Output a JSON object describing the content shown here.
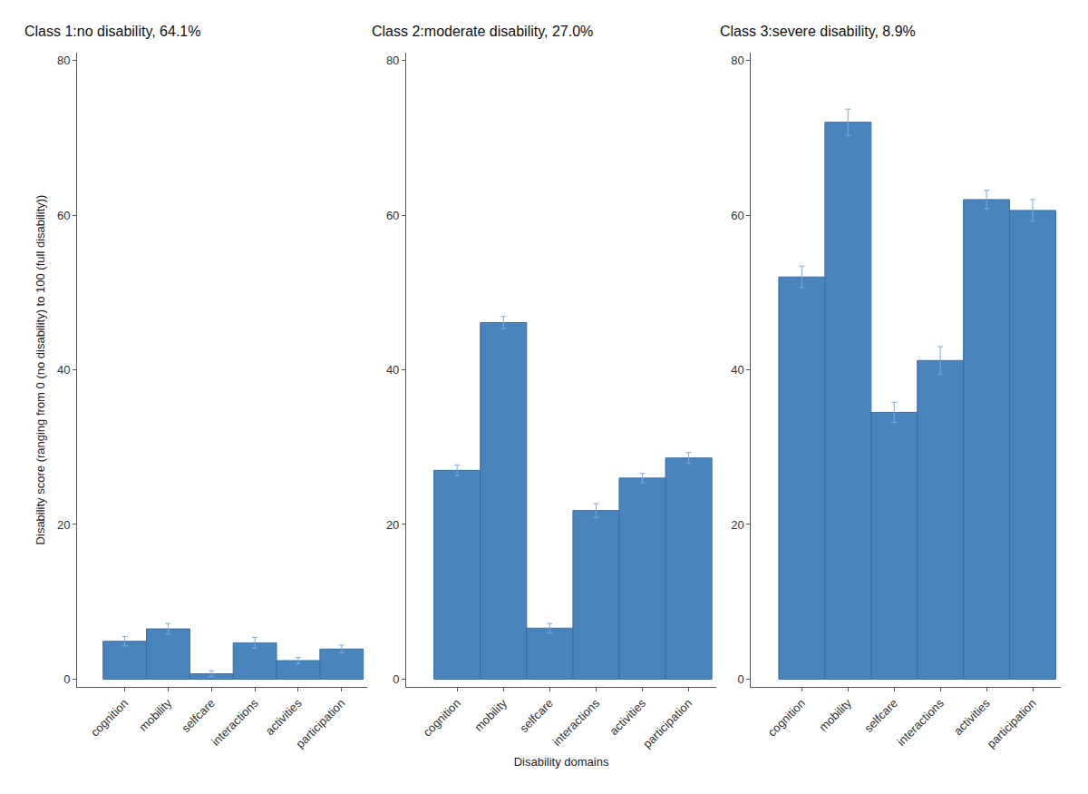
{
  "chart_data": [
    {
      "type": "bar",
      "title": "Class 1:no disability, 64.1%",
      "categories": [
        "cognition",
        "mobility",
        "selfcare",
        "interactions",
        "activities",
        "participation"
      ],
      "values": [
        4.9,
        6.5,
        0.7,
        4.7,
        2.4,
        3.9
      ],
      "errors": [
        0.6,
        0.7,
        0.4,
        0.7,
        0.4,
        0.5
      ],
      "color": "#4a84bd",
      "ylim": [
        -1,
        81
      ],
      "yticks": [
        0,
        20,
        40,
        60,
        80
      ],
      "grid": false,
      "ylabel": "Disability score (ranging from 0 (no disability) to 100 (full disability))"
    },
    {
      "type": "bar",
      "title": "Class 2:moderate disability, 27.0%",
      "categories": [
        "cognition",
        "mobility",
        "selfcare",
        "interactions",
        "activities",
        "participation"
      ],
      "values": [
        27.0,
        46.1,
        6.6,
        21.8,
        26.0,
        28.6
      ],
      "errors": [
        0.7,
        0.8,
        0.6,
        0.9,
        0.6,
        0.7
      ],
      "color": "#4a84bd",
      "ylim": [
        -1,
        81
      ],
      "yticks": [
        0,
        20,
        40,
        60,
        80
      ],
      "grid": false,
      "xlabel": "Disability domains"
    },
    {
      "type": "bar",
      "title": "Class 3:severe disability, 8.9%",
      "categories": [
        "cognition",
        "mobility",
        "selfcare",
        "interactions",
        "activities",
        "participation"
      ],
      "values": [
        52.0,
        72.0,
        34.5,
        41.2,
        62.0,
        60.6
      ],
      "errors": [
        1.4,
        1.7,
        1.3,
        1.8,
        1.2,
        1.4
      ],
      "color": "#4a84bd",
      "ylim": [
        -1,
        81
      ],
      "yticks": [
        0,
        20,
        40,
        60,
        80
      ],
      "grid": false
    }
  ]
}
